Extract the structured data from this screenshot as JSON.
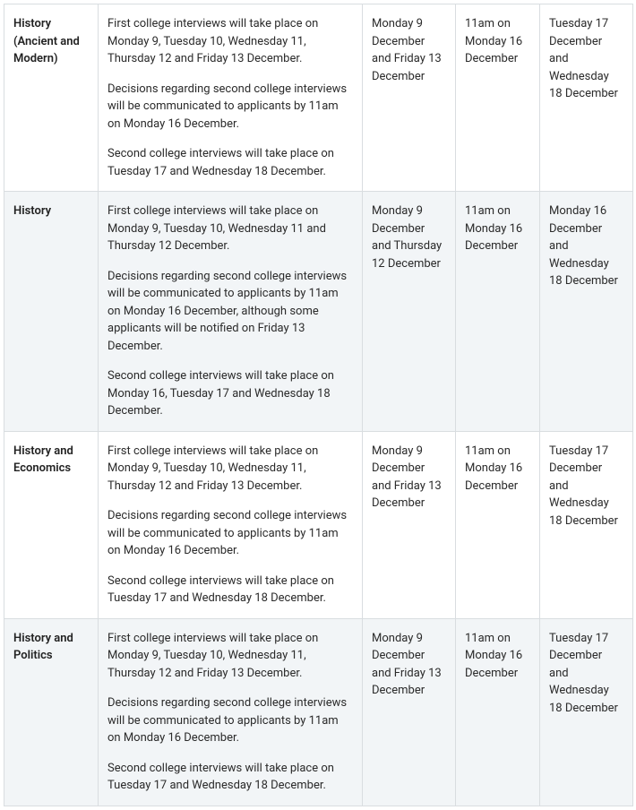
{
  "table": {
    "border_color": "#d9dde0",
    "alt_row_bg": "#f2f5f7",
    "font_size": 13,
    "columns": {
      "subject_width": 105,
      "description_width": 295,
      "col3_width": 104,
      "col4_width": 94,
      "col5_width": 104
    },
    "rows": [
      {
        "alt": false,
        "subject": "History (Ancient and Modern)",
        "paragraphs": [
          "First college interviews will take place on Monday 9, Tuesday 10, Wednesday 11, Thursday 12 and Friday 13 December.",
          "Decisions regarding second college interviews will be communicated to applicants by 11am on Monday 16 December.",
          "Second college interviews will take place on Tuesday 17 and Wednesday 18 December."
        ],
        "col3": "Monday 9 December and Friday 13 December",
        "col4": "11am on Monday 16 December",
        "col5": "Tuesday 17 December and Wednesday 18 December"
      },
      {
        "alt": true,
        "subject": "History",
        "paragraphs": [
          "First college interviews will take place on Monday 9, Tuesday 10, Wednesday 11 and Thursday 12 December.",
          "Decisions regarding second college interviews will be communicated to applicants by 11am on Monday 16 December, although some applicants will be notified on Friday 13 December.",
          "Second college interviews will take place on Monday 16, Tuesday 17 and Wednesday 18 December."
        ],
        "col3": "Monday 9 December and Thursday 12 December",
        "col4": "11am on Monday 16 December",
        "col5": "Monday 16 December and Wednesday 18 December"
      },
      {
        "alt": false,
        "subject": "History and Economics",
        "paragraphs": [
          "First college interviews will take place on Monday 9, Tuesday 10, Wednesday 11, Thursday 12 and Friday 13 December.",
          "Decisions regarding second college interviews will be communicated to applicants by 11am on Monday 16 December.",
          "Second college interviews will take place on Tuesday 17 and Wednesday 18 December."
        ],
        "col3": "Monday 9 December and Friday 13 December",
        "col4": "11am on Monday 16 December",
        "col5": "Tuesday 17 December and Wednesday 18 December"
      },
      {
        "alt": true,
        "subject": "History and Politics",
        "paragraphs": [
          "First college interviews will take place on Monday 9, Tuesday 10, Wednesday 11, Thursday 12 and Friday 13 December.",
          "Decisions regarding second college interviews will be communicated to applicants by 11am on Monday 16 December.",
          "Second college interviews will take place on Tuesday 17 and Wednesday 18 December."
        ],
        "col3": "Monday 9 December and Friday 13 December",
        "col4": "11am on Monday 16 December",
        "col5": "Tuesday 17 December and Wednesday 18 December"
      }
    ]
  }
}
